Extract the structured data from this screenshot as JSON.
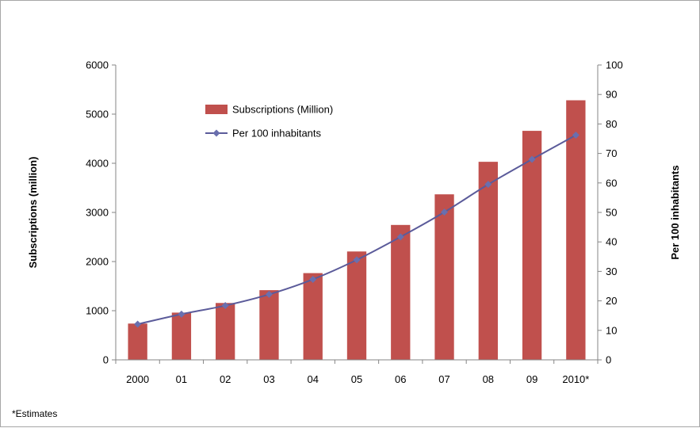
{
  "chart_data": {
    "type": "bar",
    "categories": [
      "2000",
      "01",
      "02",
      "03",
      "04",
      "05",
      "06",
      "07",
      "08",
      "09",
      "2010*"
    ],
    "series": [
      {
        "name": "Subscriptions (Million)",
        "type": "bar",
        "axis": "left",
        "color": "#c0504d",
        "values": [
          738,
          961,
          1157,
          1418,
          1765,
          2205,
          2745,
          3368,
          4030,
          4660,
          5282
        ]
      },
      {
        "name": "Per 100 inhabitants",
        "type": "line",
        "axis": "right",
        "color": "#5b5b9a",
        "marker": "diamond",
        "values": [
          12.1,
          15.5,
          18.4,
          22.2,
          27.3,
          33.9,
          41.7,
          50.1,
          59.5,
          68.0,
          76.2
        ]
      }
    ],
    "ylabel": "Subscriptions (million)",
    "y2label": "Per 100 inhabitants",
    "ylim": [
      0,
      6000
    ],
    "yticks": [
      "0",
      "1000",
      "2000",
      "3000",
      "4000",
      "5000",
      "6000"
    ],
    "y2lim": [
      0,
      100
    ],
    "y2ticks": [
      "0",
      "10",
      "20",
      "30",
      "40",
      "50",
      "60",
      "70",
      "80",
      "90",
      "100"
    ],
    "grid": false,
    "legend_position": "top-left inside plot"
  },
  "footnote": "*Estimates"
}
